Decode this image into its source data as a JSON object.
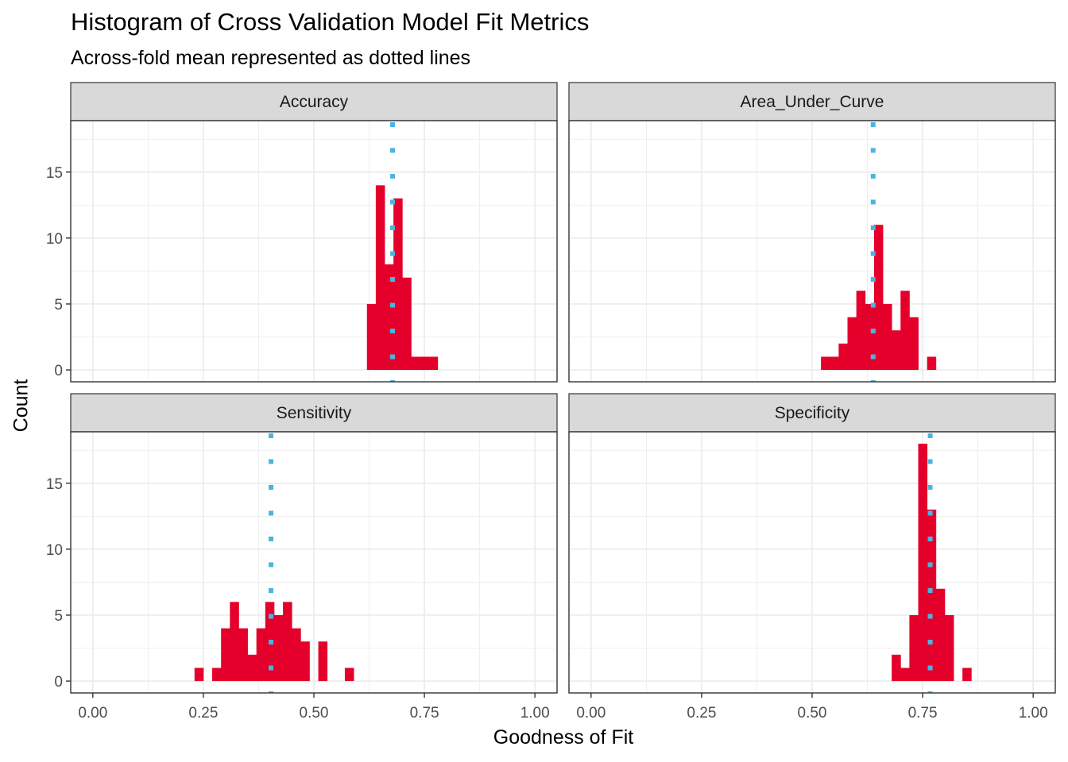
{
  "title": "Histogram of Cross Validation Model Fit Metrics",
  "subtitle": "Across-fold mean represented as dotted lines",
  "colors": {
    "bars": "#e4002b",
    "mean_line": "#4ab5e0",
    "strip_fill": "#d9d9d9",
    "grid": "#ebebeb",
    "panel_border": "#333333"
  },
  "chart_data": {
    "type": "bar",
    "xlabel": "Goodness of Fit",
    "ylabel": "Count",
    "xlim": [
      -0.05,
      1.05
    ],
    "ylim": [
      -0.9,
      18.9
    ],
    "x_ticks": [
      0.0,
      0.25,
      0.5,
      0.75,
      1.0
    ],
    "x_tick_labels": [
      "0.00",
      "0.25",
      "0.50",
      "0.75",
      "1.00"
    ],
    "y_ticks": [
      0,
      5,
      10,
      15
    ],
    "y_tick_labels": [
      "0",
      "5",
      "10",
      "15"
    ],
    "bin_width": 0.02,
    "grid": true,
    "panels": [
      {
        "name": "Accuracy",
        "mean": 0.678,
        "bins": [
          [
            0.63,
            5
          ],
          [
            0.65,
            14
          ],
          [
            0.67,
            8
          ],
          [
            0.69,
            13
          ],
          [
            0.71,
            7
          ],
          [
            0.73,
            1
          ],
          [
            0.75,
            1
          ],
          [
            0.77,
            1
          ]
        ]
      },
      {
        "name": "Area_Under_Curve",
        "mean": 0.638,
        "bins": [
          [
            0.53,
            1
          ],
          [
            0.55,
            1
          ],
          [
            0.57,
            2
          ],
          [
            0.59,
            4
          ],
          [
            0.61,
            6
          ],
          [
            0.63,
            5
          ],
          [
            0.65,
            11
          ],
          [
            0.67,
            5
          ],
          [
            0.69,
            3
          ],
          [
            0.71,
            6
          ],
          [
            0.73,
            4
          ],
          [
            0.77,
            1
          ]
        ]
      },
      {
        "name": "Sensitivity",
        "mean": 0.403,
        "bins": [
          [
            0.24,
            1
          ],
          [
            0.28,
            1
          ],
          [
            0.3,
            4
          ],
          [
            0.32,
            6
          ],
          [
            0.34,
            4
          ],
          [
            0.36,
            2
          ],
          [
            0.38,
            4
          ],
          [
            0.4,
            6
          ],
          [
            0.42,
            5
          ],
          [
            0.44,
            6
          ],
          [
            0.46,
            4
          ],
          [
            0.48,
            3
          ],
          [
            0.52,
            3
          ],
          [
            0.58,
            1
          ]
        ]
      },
      {
        "name": "Specificity",
        "mean": 0.767,
        "bins": [
          [
            0.69,
            2
          ],
          [
            0.71,
            1
          ],
          [
            0.73,
            5
          ],
          [
            0.75,
            18
          ],
          [
            0.77,
            13
          ],
          [
            0.79,
            7
          ],
          [
            0.81,
            5
          ],
          [
            0.85,
            1
          ]
        ]
      }
    ]
  }
}
